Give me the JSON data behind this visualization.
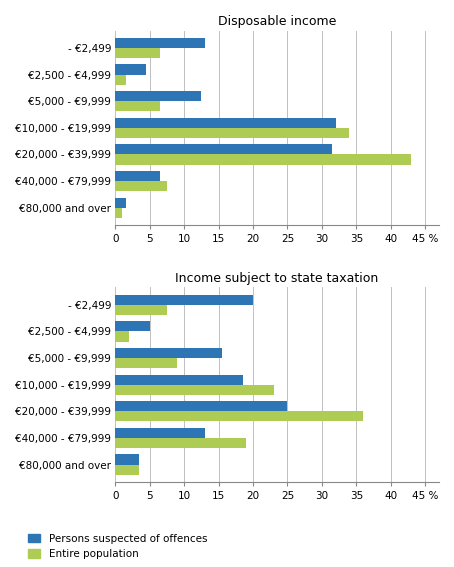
{
  "categories": [
    "- €2,499",
    "€2,500 - €4,999",
    "€5,000 - €9,999",
    "€10,000 - €19,999",
    "€20,000 - €39,999",
    "€40,000 - €79,999",
    "€80,000 and over"
  ],
  "disposable_income": {
    "title": "Disposable income",
    "suspected": [
      13,
      4.5,
      12.5,
      32,
      31.5,
      6.5,
      1.5
    ],
    "population": [
      6.5,
      1.5,
      6.5,
      34,
      43,
      7.5,
      1.0
    ]
  },
  "state_taxation": {
    "title": "Income subject to state taxation",
    "suspected": [
      20,
      5,
      15.5,
      18.5,
      25,
      13,
      3.5
    ],
    "population": [
      7.5,
      2.0,
      9,
      23,
      36,
      19,
      3.5
    ]
  },
  "blue_color": "#2E75B6",
  "green_color": "#AECC53",
  "xlim": [
    0,
    47
  ],
  "xticks": [
    0,
    5,
    10,
    15,
    20,
    25,
    30,
    35,
    40,
    45
  ],
  "bar_height": 0.38,
  "legend_labels": [
    "Persons suspected of offences",
    "Entire population"
  ],
  "background_color": "#ffffff",
  "grid_color": "#c0c0c0"
}
